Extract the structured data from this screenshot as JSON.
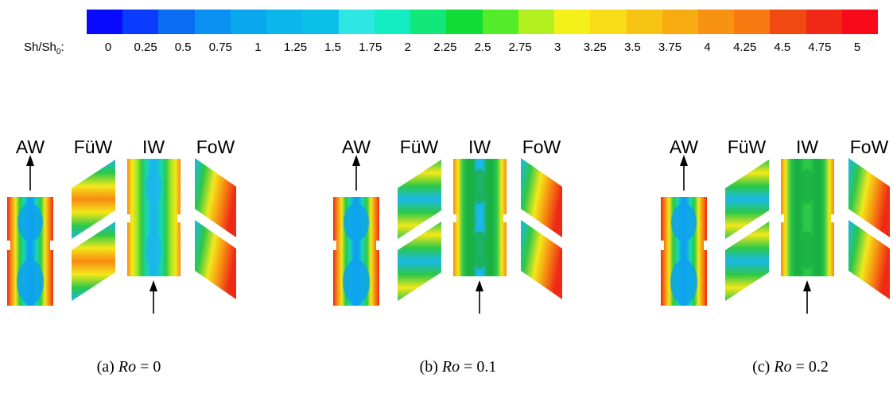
{
  "colorbar": {
    "quantity_main": "Sh/Sh",
    "quantity_sub": "0",
    "quantity_suffix": ":",
    "ticks": [
      "0",
      "0.25",
      "0.5",
      "0.75",
      "1",
      "1.25",
      "1.5",
      "1.75",
      "2",
      "2.25",
      "2.5",
      "2.75",
      "3",
      "3.25",
      "3.5",
      "3.75",
      "4",
      "4.25",
      "4.5",
      "4.75",
      "5"
    ],
    "colors": [
      "#0a0aff",
      "#0a3cff",
      "#0a6cf2",
      "#0a90f0",
      "#0aa6ee",
      "#0ab6ec",
      "#0ac0e8",
      "#2ee6e4",
      "#12ecc0",
      "#12e87a",
      "#12dc36",
      "#54ec28",
      "#b2f020",
      "#f4f01a",
      "#f8dc18",
      "#f8c414",
      "#f8ac12",
      "#f89212",
      "#f87a10",
      "#f04a12",
      "#f02a16",
      "#f80a1a"
    ]
  },
  "walls": [
    "AW",
    "FüW",
    "IW",
    "FoW"
  ],
  "panels": [
    {
      "prefix": "(a) ",
      "symbol": "Ro",
      "equals": " = ",
      "value": "0"
    },
    {
      "prefix": "(b) ",
      "symbol": "Ro",
      "equals": " = ",
      "value": "0.1"
    },
    {
      "prefix": "(c) ",
      "symbol": "Ro",
      "equals": " = ",
      "value": "0.2"
    }
  ]
}
